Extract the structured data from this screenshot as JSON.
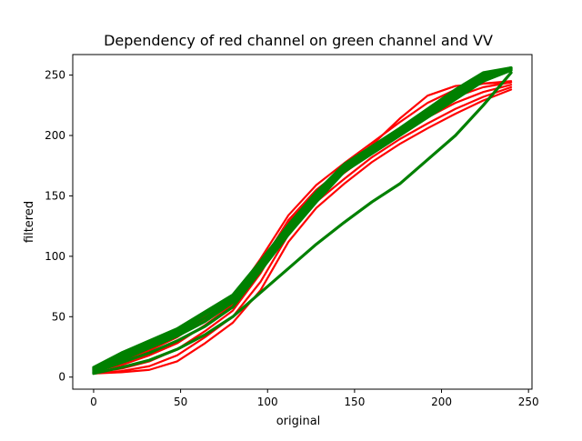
{
  "chart_data": {
    "type": "line",
    "title": "Dependency of red channel on green channel and VV",
    "xlabel": "original",
    "ylabel": "filtered",
    "xlim": [
      -12,
      252
    ],
    "ylim": [
      -10,
      267
    ],
    "xticks": [
      0,
      50,
      100,
      150,
      200,
      250
    ],
    "yticks": [
      0,
      50,
      100,
      150,
      200,
      250
    ],
    "grid": false,
    "legend": "none",
    "x": [
      0,
      16,
      32,
      48,
      64,
      80,
      96,
      112,
      128,
      144,
      160,
      176,
      192,
      208,
      224,
      240
    ],
    "series": [
      {
        "color": "#ff0000",
        "values": [
          3,
          4,
          6,
          13,
          28,
          45,
          72,
          112,
          140,
          160,
          178,
          193,
          206,
          218,
          229,
          238
        ]
      },
      {
        "color": "#ff0000",
        "values": [
          3,
          5,
          9,
          18,
          33,
          50,
          79,
          118,
          145,
          164,
          182,
          197,
          210,
          222,
          232,
          240
        ]
      },
      {
        "color": "#ff0000",
        "values": [
          4,
          7,
          13,
          23,
          38,
          55,
          86,
          125,
          150,
          169,
          186,
          201,
          215,
          227,
          236,
          242
        ]
      },
      {
        "color": "#ff0000",
        "values": [
          5,
          10,
          18,
          28,
          43,
          60,
          93,
          130,
          155,
          173,
          190,
          206,
          220,
          232,
          240,
          244
        ]
      },
      {
        "color": "#ff0000",
        "values": [
          6,
          13,
          22,
          33,
          48,
          65,
          98,
          134,
          159,
          177,
          194,
          211,
          227,
          238,
          243,
          245
        ]
      },
      {
        "color": "#ff0000",
        "values": [
          5,
          17,
          26,
          36,
          50,
          63,
          92,
          128,
          153,
          174,
          192,
          214,
          233,
          241,
          243,
          244
        ]
      },
      {
        "color": "#008000",
        "values": [
          3,
          8,
          14,
          23,
          35,
          50,
          70,
          90,
          110,
          128,
          145,
          160,
          180,
          200,
          225,
          252
        ]
      },
      {
        "color": "#008000",
        "values": [
          4,
          12,
          20,
          30,
          42,
          58,
          88,
          118,
          145,
          170,
          185,
          200,
          215,
          230,
          245,
          254
        ]
      },
      {
        "color": "#008000",
        "values": [
          5,
          14,
          24,
          34,
          46,
          62,
          90,
          120,
          147,
          172,
          187,
          202,
          217,
          232,
          247,
          255
        ]
      },
      {
        "color": "#008000",
        "values": [
          6,
          16,
          26,
          36,
          49,
          64,
          92,
          122,
          149,
          173,
          188,
          203,
          218,
          234,
          248,
          255
        ]
      },
      {
        "color": "#008000",
        "values": [
          7,
          18,
          28,
          38,
          52,
          66,
          94,
          124,
          151,
          175,
          190,
          205,
          220,
          236,
          250,
          256
        ]
      },
      {
        "color": "#008000",
        "values": [
          8,
          20,
          30,
          40,
          54,
          68,
          96,
          126,
          153,
          176,
          191,
          206,
          222,
          238,
          252,
          256
        ]
      }
    ]
  }
}
